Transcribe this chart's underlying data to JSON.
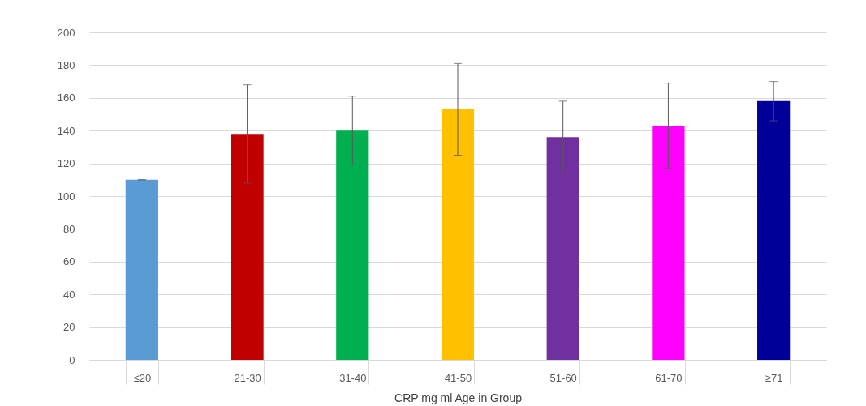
{
  "chart_data": {
    "type": "bar",
    "xlabel": "CRP mg ml Age in Group",
    "categories": [
      "≤20",
      "21-30",
      "31-40",
      "41-50",
      "51-60",
      "61-70",
      "≥71"
    ],
    "values": [
      110,
      138,
      140,
      153,
      136,
      143,
      158
    ],
    "errors": [
      0,
      30,
      21,
      28,
      22,
      26,
      12
    ],
    "colors": [
      "#5b9bd5",
      "#c00000",
      "#00b050",
      "#ffc000",
      "#7030a0",
      "#ff00ff",
      "#000099"
    ],
    "ylim": [
      0,
      200
    ],
    "yticks": [
      0,
      20,
      40,
      60,
      80,
      100,
      120,
      140,
      160,
      180,
      200
    ],
    "grid": "y",
    "legend": false
  }
}
